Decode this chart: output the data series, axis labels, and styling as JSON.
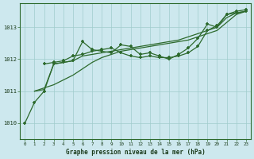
{
  "title": "Graphe pression niveau de la mer (hPa)",
  "bg_color": "#cde8ee",
  "line_color": "#2d6a2d",
  "grid_color": "#a0cccc",
  "x_min": -0.5,
  "x_max": 23.5,
  "y_min": 1009.5,
  "y_max": 1013.75,
  "yticks": [
    1010,
    1011,
    1012,
    1013
  ],
  "xticks": [
    0,
    1,
    2,
    3,
    4,
    5,
    6,
    7,
    8,
    9,
    10,
    11,
    12,
    13,
    14,
    15,
    16,
    17,
    18,
    19,
    20,
    21,
    22,
    23
  ],
  "series1": {
    "x": [
      0,
      1,
      2,
      3,
      4,
      5,
      6,
      7,
      8,
      9,
      10,
      11,
      12,
      13,
      14,
      15,
      16,
      17,
      18,
      19,
      20,
      21,
      22,
      23
    ],
    "y": [
      1010.0,
      1010.65,
      1011.0,
      1011.85,
      1011.9,
      1011.95,
      1012.55,
      1012.3,
      1012.25,
      1012.2,
      1012.45,
      1012.4,
      1012.15,
      1012.2,
      1012.1,
      1012.0,
      1012.15,
      1012.35,
      1012.65,
      1013.1,
      1013.0,
      1013.4,
      1013.45,
      1013.5
    ],
    "marker": true
  },
  "series2": {
    "x": [
      1,
      2,
      3,
      4,
      5,
      6,
      7,
      8,
      9,
      10,
      11,
      12,
      13,
      14,
      15,
      16,
      17,
      18,
      19,
      20,
      21,
      22,
      23
    ],
    "y": [
      1011.0,
      1011.05,
      1011.85,
      1011.9,
      1011.95,
      1012.1,
      1012.15,
      1012.2,
      1012.25,
      1012.3,
      1012.35,
      1012.4,
      1012.45,
      1012.5,
      1012.55,
      1012.6,
      1012.7,
      1012.8,
      1012.9,
      1013.0,
      1013.3,
      1013.45,
      1013.5
    ],
    "marker": false
  },
  "series3": {
    "x": [
      1,
      2,
      3,
      4,
      5,
      6,
      7,
      8,
      9,
      10,
      11,
      12,
      13,
      14,
      15,
      16,
      17,
      18,
      19,
      20,
      21,
      22,
      23
    ],
    "y": [
      1011.0,
      1011.1,
      1011.2,
      1011.35,
      1011.5,
      1011.7,
      1011.9,
      1012.05,
      1012.15,
      1012.25,
      1012.3,
      1012.35,
      1012.4,
      1012.45,
      1012.5,
      1012.55,
      1012.6,
      1012.7,
      1012.8,
      1012.9,
      1013.15,
      1013.4,
      1013.5
    ],
    "marker": false
  },
  "series4": {
    "x": [
      2,
      3,
      4,
      5,
      6,
      7,
      8,
      9,
      10,
      11,
      12,
      13,
      14,
      15,
      16,
      17,
      18,
      19,
      20,
      21,
      22,
      23
    ],
    "y": [
      1011.85,
      1011.9,
      1011.95,
      1012.1,
      1012.15,
      1012.25,
      1012.3,
      1012.35,
      1012.2,
      1012.1,
      1012.05,
      1012.1,
      1012.05,
      1012.05,
      1012.1,
      1012.2,
      1012.4,
      1012.9,
      1013.05,
      1013.4,
      1013.5,
      1013.55
    ],
    "marker": true
  }
}
